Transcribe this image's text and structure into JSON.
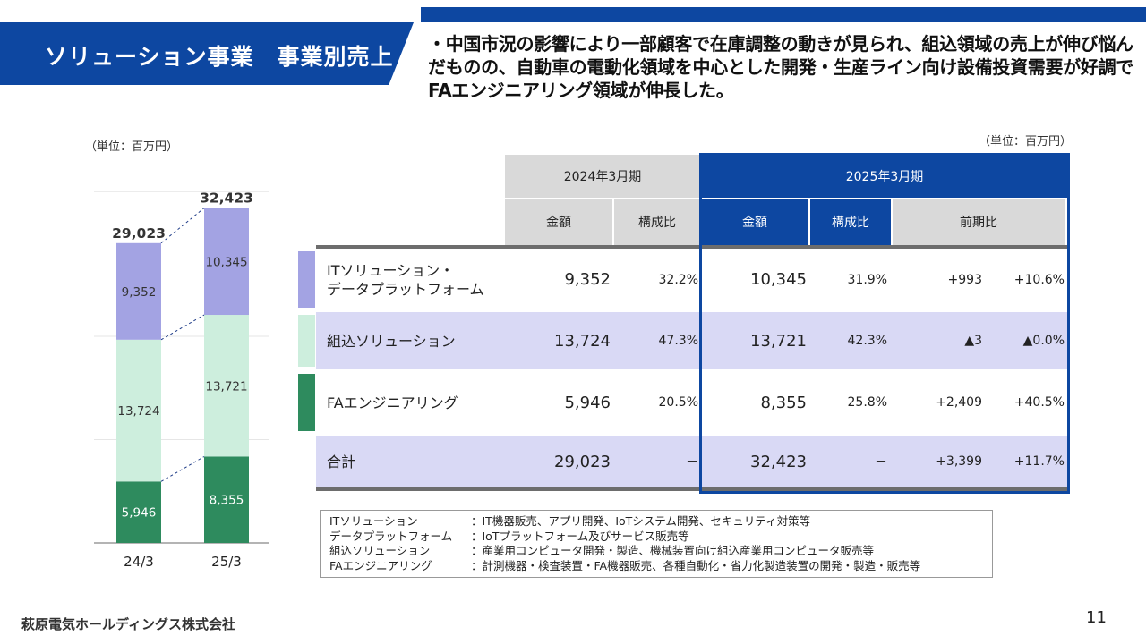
{
  "header": {
    "title": "ソリューション事業　事業別売上",
    "summary": "・中国市況の影響により一部顧客で在庫調整の動きが見られ、組込領域の売上が伸び悩んだものの、自動車の電動化領域を中心とした開発・生産ライン向け設備投資需要が好調でFAエンジニアリング領域が伸長した。"
  },
  "chart": {
    "unit": "（単位：百万円）"
  },
  "chart_data": {
    "type": "bar",
    "stacked": true,
    "categories": [
      "24/3",
      "25/3"
    ],
    "series": [
      {
        "name": "FAエンジニアリング",
        "values": [
          5946,
          8355
        ],
        "color": "#2e8b5e"
      },
      {
        "name": "組込ソリューション",
        "values": [
          13724,
          13721
        ],
        "color": "#cdeedd"
      },
      {
        "name": "ITソリューション・データプラットフォーム",
        "values": [
          9352,
          10345
        ],
        "color": "#a3a3e3"
      }
    ],
    "totals": [
      "29,023",
      "32,423"
    ],
    "value_labels": [
      [
        "5,946",
        "13,724",
        "9,352"
      ],
      [
        "8,355",
        "13,721",
        "10,345"
      ]
    ],
    "ylim": [
      0,
      40000
    ]
  },
  "table": {
    "unit": "（単位：百万円）",
    "period_prev": "2024年3月期",
    "period_curr": "2025年3月期",
    "col_amount": "金額",
    "col_ratio": "構成比",
    "col_yoy": "前期比",
    "rows": [
      {
        "label": "ITソリューション・\nデータプラットフォーム",
        "prev_amount": "9,352",
        "prev_ratio": "32.2%",
        "curr_amount": "10,345",
        "curr_ratio": "31.9%",
        "diff": "+993",
        "diff_pct": "+10.6%",
        "bar_color": "#a3a3e3",
        "bg": "#ffffff"
      },
      {
        "label": "組込ソリューション",
        "prev_amount": "13,724",
        "prev_ratio": "47.3%",
        "curr_amount": "13,721",
        "curr_ratio": "42.3%",
        "diff": "▲3",
        "diff_pct": "▲0.0%",
        "bar_color": "#cdeedd",
        "bg": "#d9d9f5"
      },
      {
        "label": "FAエンジニアリング",
        "prev_amount": "5,946",
        "prev_ratio": "20.5%",
        "curr_amount": "8,355",
        "curr_ratio": "25.8%",
        "diff": "+2,409",
        "diff_pct": "+40.5%",
        "bar_color": "#2e8b5e",
        "bg": "#ffffff"
      },
      {
        "label": "合計",
        "prev_amount": "29,023",
        "prev_ratio": "－",
        "curr_amount": "32,423",
        "curr_ratio": "－",
        "diff": "+3,399",
        "diff_pct": "+11.7%",
        "bar_color": "",
        "bg": "#d9d9f5"
      }
    ]
  },
  "legend": [
    {
      "term": "ITソリューション",
      "desc": "：IT機器販売、アプリ開発、IoTシステム開発、セキュリティ対策等"
    },
    {
      "term": "データプラットフォーム",
      "desc": "：IoTプラットフォーム及びサービス販売等"
    },
    {
      "term": "組込ソリューション",
      "desc": "：産業用コンピュータ開発・製造、機械装置向け組込産業用コンピュータ販売等"
    },
    {
      "term": "FAエンジニアリング",
      "desc": "：計測機器・検査装置・FA機器販売、各種自動化・省力化製造装置の開発・製造・販売等"
    }
  ],
  "footer": {
    "company": "萩原電気ホールディングス株式会社",
    "page": "11"
  },
  "colors": {
    "brand_blue": "#0d47a1",
    "header_gray": "#d9d9d9",
    "row_lavender": "#d9d9f5"
  }
}
